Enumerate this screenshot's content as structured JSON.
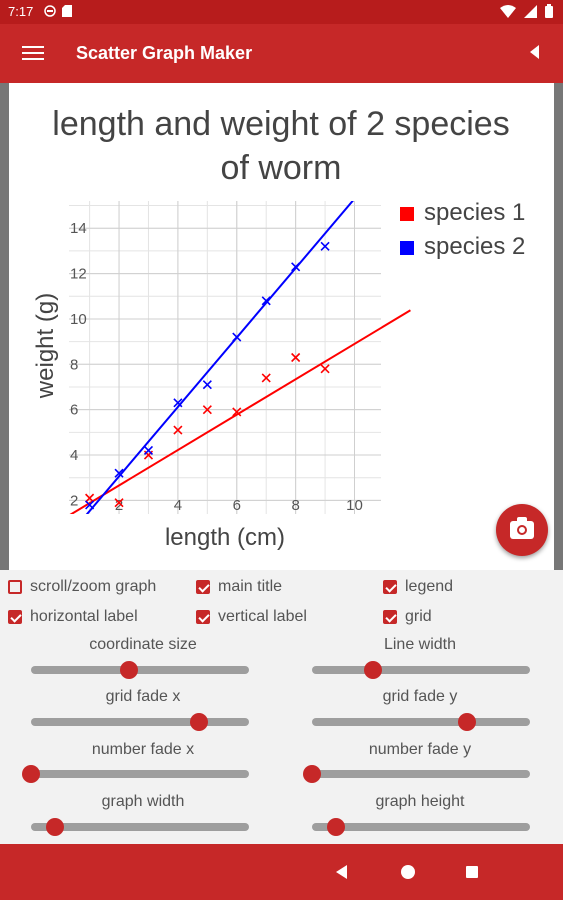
{
  "status": {
    "time": "7:17"
  },
  "app": {
    "title": "Scatter Graph Maker"
  },
  "chart_data": {
    "type": "scatter",
    "title_lines": [
      "length and weight of 2 species",
      "of worm"
    ],
    "xlabel": "length (cm)",
    "ylabel": "weight (g)",
    "xlim": [
      0.3,
      10.9
    ],
    "ylim": [
      1.4,
      15.2
    ],
    "xticks": [
      2,
      4,
      6,
      8,
      10
    ],
    "yticks": [
      2,
      4,
      6,
      8,
      10,
      12,
      14
    ],
    "grid": true,
    "legend_position": "right",
    "series": [
      {
        "name": "species 1",
        "color": "#ff0000",
        "x": [
          1,
          2,
          3,
          4,
          5,
          6,
          7,
          8,
          9
        ],
        "y": [
          2.1,
          1.9,
          4.0,
          5.1,
          6.0,
          5.9,
          7.4,
          8.3,
          7.8
        ],
        "trendline": {
          "slope": 0.78,
          "intercept": 1.1
        }
      },
      {
        "name": "species 2",
        "color": "#0000ff",
        "x": [
          1,
          2,
          3,
          4,
          5,
          6,
          7,
          8,
          9
        ],
        "y": [
          1.8,
          3.2,
          4.2,
          6.3,
          7.1,
          9.2,
          10.8,
          12.3,
          13.2
        ],
        "trendline": {
          "slope": 1.53,
          "intercept": 0.0
        }
      }
    ]
  },
  "options": {
    "scroll_zoom": {
      "label": "scroll/zoom graph",
      "checked": false
    },
    "main_title": {
      "label": "main title",
      "checked": true
    },
    "legend": {
      "label": "legend",
      "checked": true
    },
    "horizontal_label": {
      "label": "horizontal label",
      "checked": true
    },
    "vertical_label": {
      "label": "vertical label",
      "checked": true
    },
    "grid": {
      "label": "grid",
      "checked": true
    }
  },
  "sliders": {
    "coordinate_size": {
      "label": "coordinate size",
      "value": 0.45
    },
    "line_width": {
      "label": "Line width",
      "value": 0.28
    },
    "grid_fade_x": {
      "label": "grid fade x",
      "value": 0.77
    },
    "grid_fade_y": {
      "label": "grid fade y",
      "value": 0.71
    },
    "number_fade_x": {
      "label": "number fade x",
      "value": 0.0
    },
    "number_fade_y": {
      "label": "number fade y",
      "value": 0.0
    },
    "graph_width": {
      "label": "graph width",
      "value": 0.11
    },
    "graph_height": {
      "label": "graph height",
      "value": 0.11
    }
  },
  "icons": [
    "menu-icon",
    "back-arrow-icon",
    "camera-icon",
    "nav-back-icon",
    "nav-home-icon",
    "nav-recents-icon",
    "wifi-icon",
    "battery-icon"
  ]
}
